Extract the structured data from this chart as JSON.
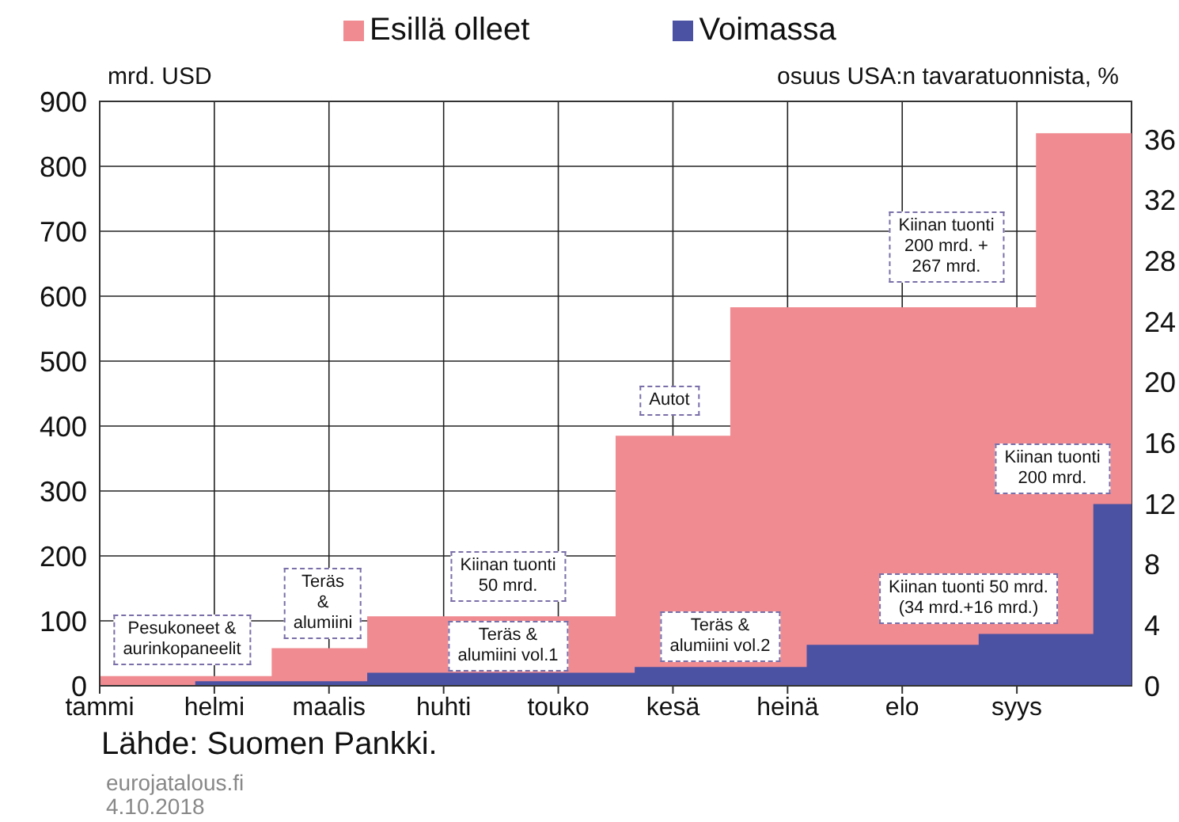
{
  "chart_data": {
    "type": "area",
    "ylabel": "mrd. USD",
    "y2label": "osuus USA:n tavaratuonnista, %",
    "categories": [
      "tammi",
      null,
      null,
      null,
      null,
      null,
      "helmi",
      null,
      null,
      null,
      null,
      null,
      "maalis",
      null,
      null,
      null,
      null,
      null,
      "huhti",
      null,
      null,
      null,
      null,
      null,
      "touko",
      null,
      null,
      null,
      null,
      null,
      "kesä",
      null,
      null,
      null,
      null,
      null,
      "heinä",
      null,
      null,
      null,
      null,
      null,
      "elo",
      null,
      null,
      null,
      null,
      null,
      "syys",
      null,
      null,
      null,
      null,
      null,
      null
    ],
    "ylim": [
      0,
      900
    ],
    "yticks": [
      0,
      100,
      200,
      300,
      400,
      500,
      600,
      700,
      800,
      900
    ],
    "y2lim": [
      0,
      38.5
    ],
    "y2ticks": [
      0,
      4,
      8,
      12,
      16,
      20,
      24,
      28,
      32,
      36
    ],
    "grid": true,
    "legend": "top",
    "series": [
      {
        "name": "Esillä olleet",
        "color": "#f08b91",
        "values": [
          15,
          15,
          15,
          15,
          15,
          15,
          15,
          15,
          15,
          58,
          58,
          58,
          58,
          58,
          107,
          107,
          107,
          107,
          107,
          107,
          107,
          107,
          107,
          107,
          107,
          107,
          107,
          385,
          385,
          385,
          385,
          385,
          385,
          583,
          583,
          583,
          583,
          583,
          583,
          583,
          583,
          583,
          583,
          583,
          583,
          583,
          583,
          583,
          583,
          851,
          851,
          851,
          851,
          851,
          851
        ]
      },
      {
        "name": "Voimassa",
        "color": "#4b52a4",
        "values": [
          0,
          0,
          0,
          0,
          0,
          7,
          7,
          7,
          7,
          7,
          7,
          7,
          7,
          7,
          20,
          20,
          20,
          20,
          20,
          20,
          20,
          20,
          20,
          20,
          20,
          20,
          20,
          20,
          29,
          29,
          29,
          29,
          29,
          29,
          29,
          29,
          29,
          63,
          63,
          63,
          63,
          63,
          63,
          63,
          63,
          63,
          80,
          80,
          80,
          80,
          80,
          80,
          280,
          280,
          280
        ]
      }
    ],
    "annotations": [
      "Pesukoneet &\naurinkopaneelit",
      "Teräs\n&\nalumiini",
      "Kiinan tuonti\n50 mrd.",
      "Teräs &\nalumiini vol.1",
      "Autot",
      "Teräs &\nalumiini vol.2",
      "Kiinan tuonti\n200 mrd. +\n267 mrd.",
      "Kiinan tuonti 50 mrd.\n(34 mrd.+16 mrd.)",
      "Kiinan tuonti\n200 mrd.",
      "Lähde: Suomen Pankki.",
      "eurojatalous.fi",
      "4.10.2018"
    ]
  }
}
